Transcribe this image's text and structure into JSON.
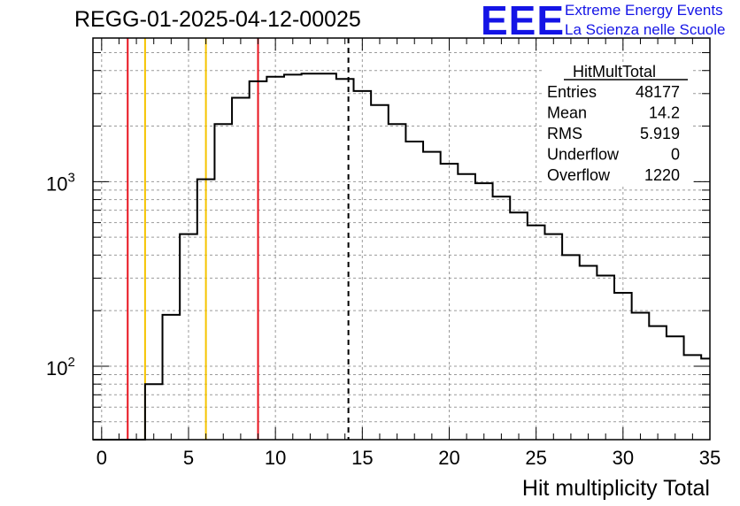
{
  "header": {
    "title": "REGG-01-2025-04-12-00025",
    "logo_mark": "EEE",
    "logo_line1": "Extreme Energy Events",
    "logo_line2": "La Scienza nelle Scuole"
  },
  "stats": {
    "name": "HitMultTotal",
    "rows": [
      {
        "label": "Entries",
        "value": "48177"
      },
      {
        "label": "Mean",
        "value": "14.2"
      },
      {
        "label": "RMS",
        "value": "5.919"
      },
      {
        "label": "Underflow",
        "value": "0"
      },
      {
        "label": "Overflow",
        "value": "1220"
      }
    ]
  },
  "chart_data": {
    "type": "histogram",
    "xlabel": "Hit multiplicity Total",
    "ylabel": "",
    "xlim": [
      -0.5,
      35
    ],
    "ylim": [
      40,
      6000
    ],
    "yscale": "log",
    "grid": true,
    "x_ticks": [
      0,
      5,
      10,
      15,
      20,
      25,
      30,
      35
    ],
    "y_tick_labels": [
      {
        "value": 100,
        "base": "10",
        "exp": "2"
      },
      {
        "value": 1000,
        "base": "10",
        "exp": "3"
      }
    ],
    "bin_edges": [
      -0.5,
      0.5,
      1.5,
      2.5,
      3.5,
      4.5,
      5.5,
      6.5,
      7.5,
      8.5,
      9.5,
      10.5,
      11.5,
      12.5,
      13.5,
      14.5,
      15.5,
      16.5,
      17.5,
      18.5,
      19.5,
      20.5,
      21.5,
      22.5,
      23.5,
      24.5,
      25.5,
      26.5,
      27.5,
      28.5,
      29.5,
      30.5,
      31.5,
      32.5,
      33.5,
      34.5,
      35.5
    ],
    "counts": [
      0,
      0,
      0,
      80,
      190,
      520,
      1030,
      2050,
      2850,
      3500,
      3700,
      3800,
      3850,
      3850,
      3600,
      3100,
      2600,
      2050,
      1650,
      1450,
      1250,
      1100,
      980,
      830,
      680,
      580,
      520,
      400,
      350,
      310,
      250,
      195,
      165,
      145,
      115,
      110
    ],
    "vertical_lines": [
      {
        "x": 1.5,
        "color": "#e8141e",
        "style": "solid"
      },
      {
        "x": 2.5,
        "color": "#f5c400",
        "style": "solid"
      },
      {
        "x": 6.0,
        "color": "#f5c400",
        "style": "solid"
      },
      {
        "x": 9.0,
        "color": "#e8141e",
        "style": "solid"
      },
      {
        "x": 14.2,
        "color": "#000000",
        "style": "dashed"
      }
    ]
  }
}
